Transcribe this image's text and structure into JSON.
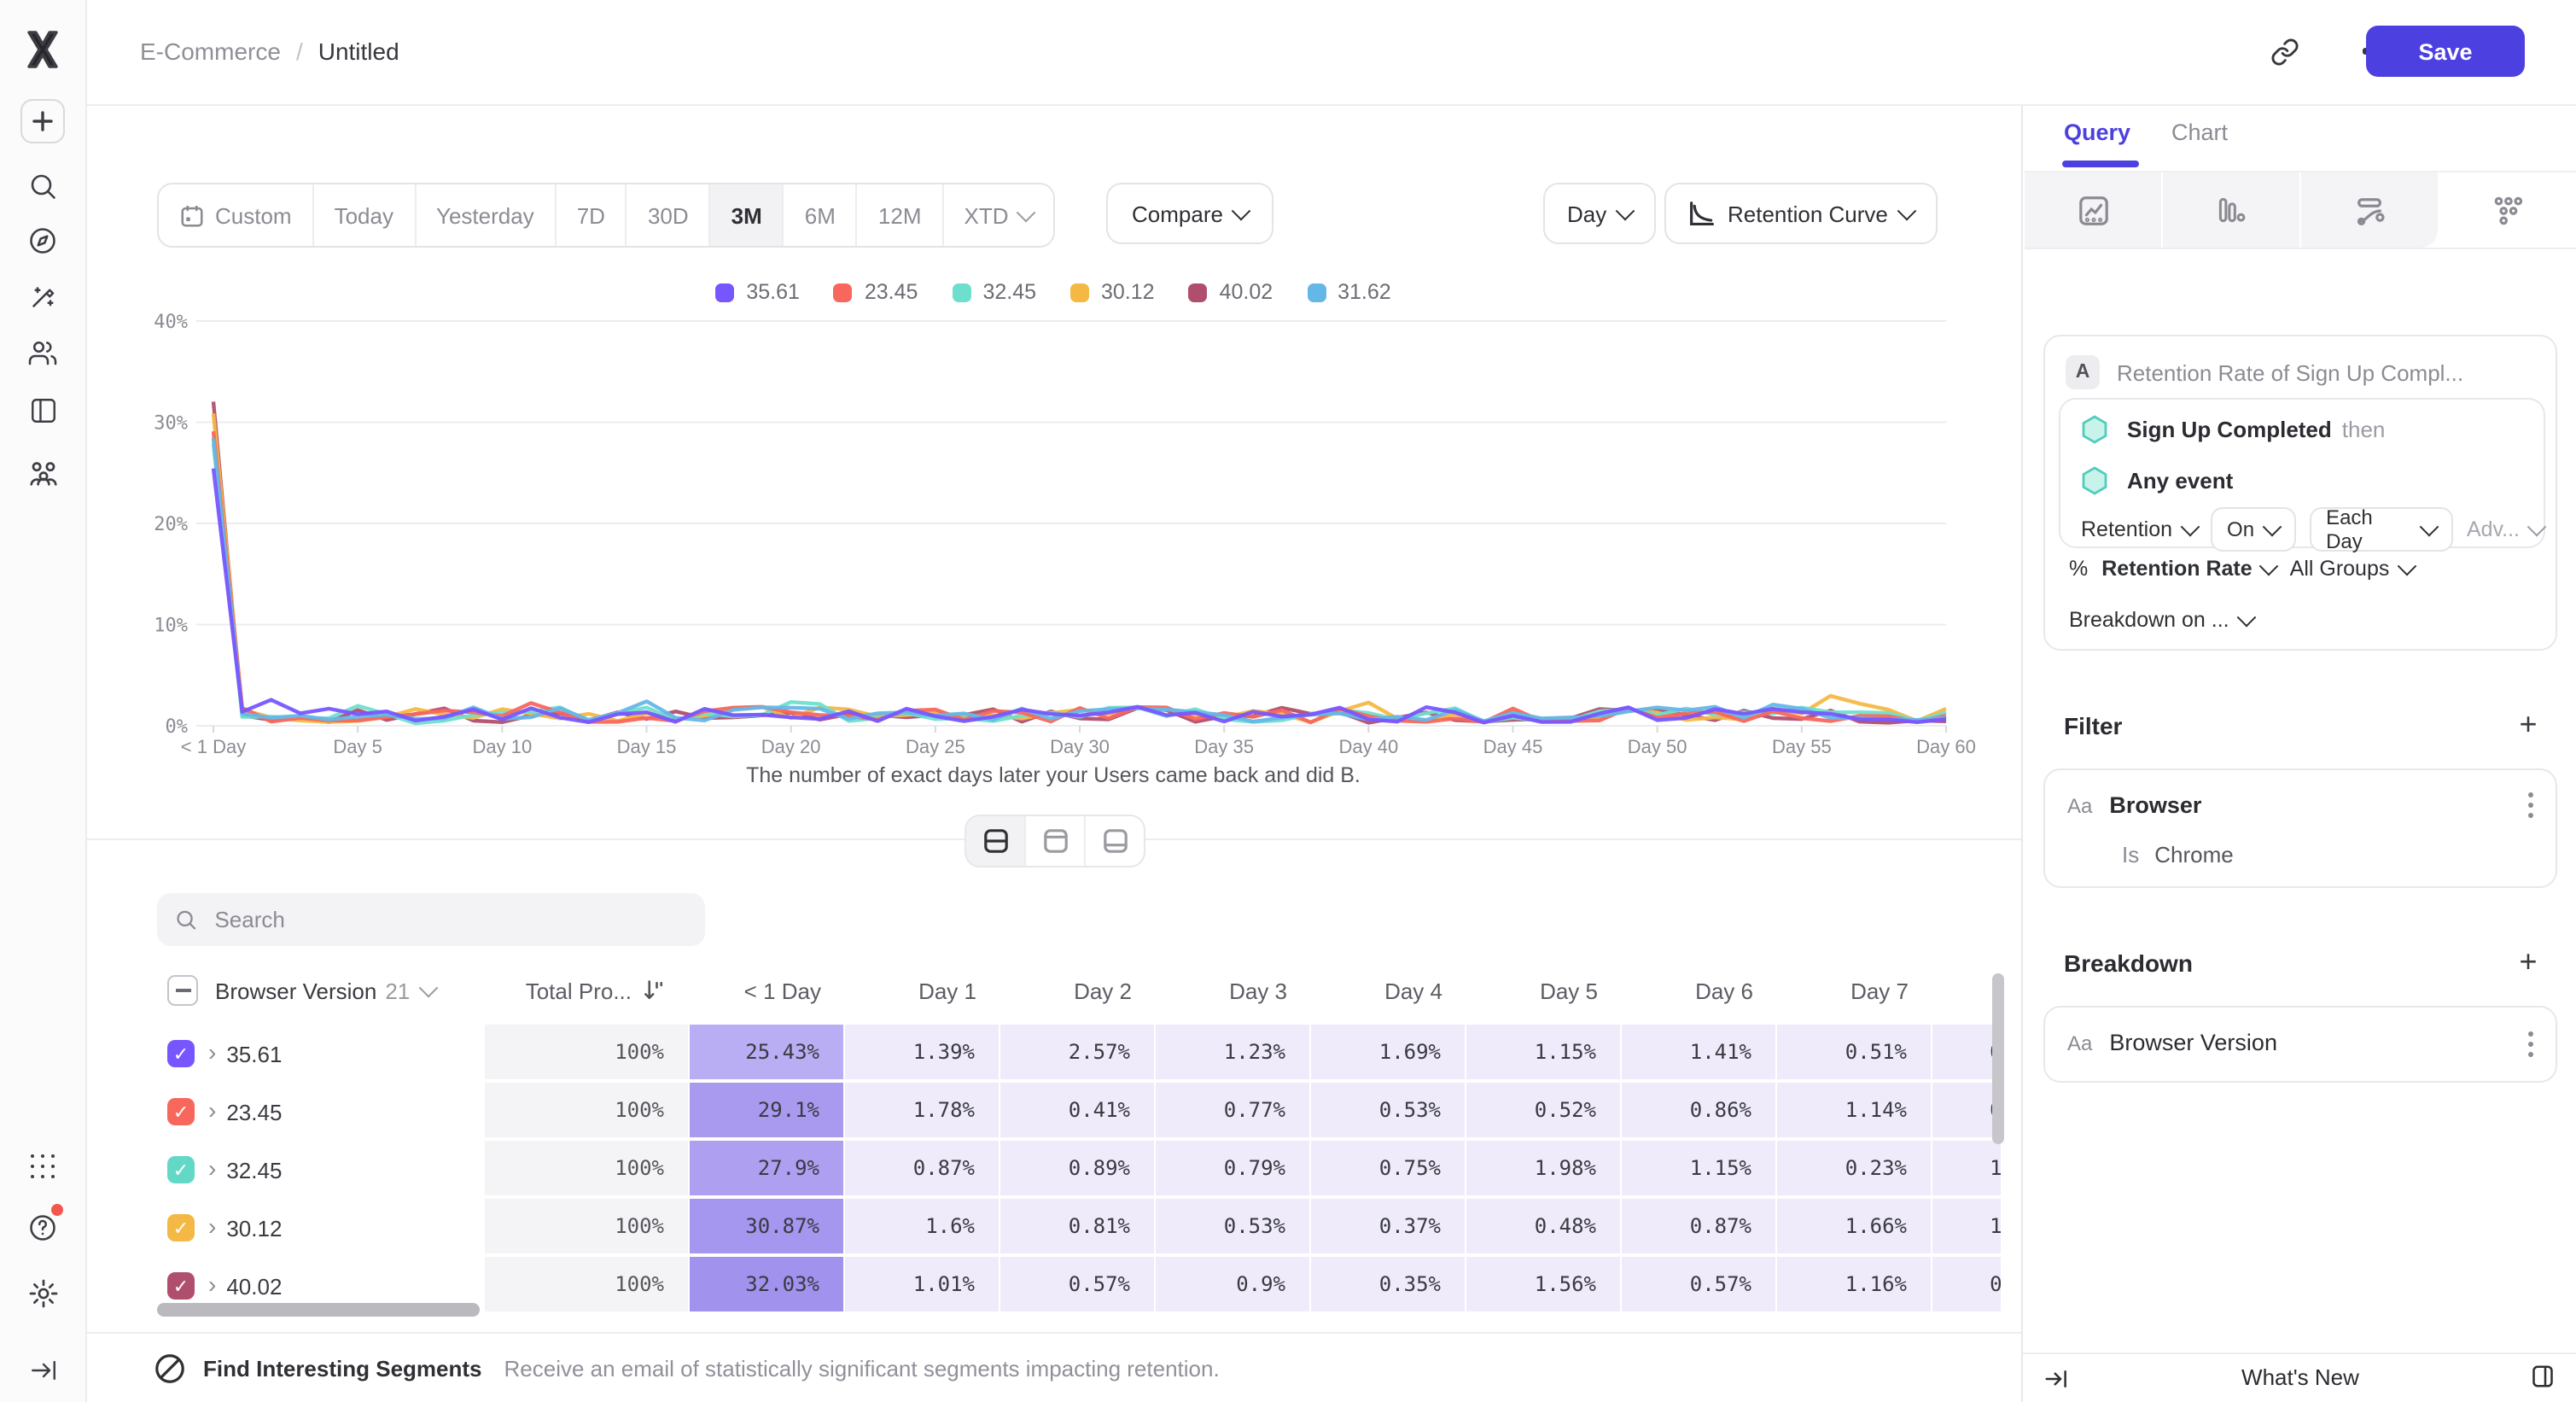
{
  "topbar": {
    "breadcrumb": {
      "project": "E-Commerce",
      "separator": "/",
      "title": "Untitled"
    },
    "save_label": "Save"
  },
  "sidebar": {
    "top_icons": [
      "mixpanel-logo",
      "create-plus",
      "search",
      "explore",
      "magic-wand",
      "users",
      "boards",
      "cohorts"
    ],
    "bottom_icons": [
      "apps-grid",
      "help",
      "settings",
      "collapse-sidebar"
    ],
    "help_badge_color": "#f2564d"
  },
  "toolbar": {
    "date_ranges": [
      "Custom",
      "Today",
      "Yesterday",
      "7D",
      "30D",
      "3M",
      "6M",
      "12M",
      "XTD"
    ],
    "selected_range": "3M",
    "compare_label": "Compare",
    "granularity_label": "Day",
    "chart_type_label": "Retention Curve"
  },
  "legend": {
    "items": [
      {
        "label": "35.61",
        "color": "#7856ff"
      },
      {
        "label": "23.45",
        "color": "#f8675c"
      },
      {
        "label": "32.45",
        "color": "#6fdfcd"
      },
      {
        "label": "30.12",
        "color": "#f4b844"
      },
      {
        "label": "40.02",
        "color": "#b04f6d"
      },
      {
        "label": "31.62",
        "color": "#65b7e8"
      }
    ]
  },
  "chart_data": {
    "type": "line",
    "title": "",
    "x_ticks": [
      "< 1 Day",
      "Day 5",
      "Day 10",
      "Day 15",
      "Day 20",
      "Day 25",
      "Day 30",
      "Day 35",
      "Day 40",
      "Day 45",
      "Day 50",
      "Day 55",
      "Day 60"
    ],
    "x_points": 61,
    "y_ticks": [
      "0%",
      "10%",
      "20%",
      "30%",
      "40%"
    ],
    "y_max_percent": 40,
    "grid": true,
    "legend_position": "top-center",
    "caption": "The number of exact days later your Users came back and did B.",
    "series": [
      {
        "name": "35.61",
        "color": "#7856ff",
        "values_day0_to_7": [
          25.43,
          1.39,
          2.57,
          1.23,
          1.69,
          1.15,
          1.41,
          0.51
        ]
      },
      {
        "name": "23.45",
        "color": "#f8675c",
        "values_day0_to_7": [
          29.1,
          1.78,
          0.41,
          0.77,
          0.53,
          0.52,
          0.86,
          1.14
        ]
      },
      {
        "name": "32.45",
        "color": "#6fdfcd",
        "values_day0_to_7": [
          27.9,
          0.87,
          0.89,
          0.79,
          0.75,
          1.98,
          1.15,
          0.23
        ]
      },
      {
        "name": "30.12",
        "color": "#f4b844",
        "values_day0_to_7": [
          30.87,
          1.6,
          0.81,
          0.53,
          0.37,
          0.48,
          0.87,
          1.66
        ]
      },
      {
        "name": "40.02",
        "color": "#b04f6d",
        "values_day0_to_7": [
          32.03,
          1.01,
          0.57,
          0.9,
          0.35,
          1.56,
          0.57,
          1.16
        ]
      },
      {
        "name": "31.62",
        "color": "#65b7e8",
        "values_day0_to_7": [
          28.4,
          1.2,
          0.8,
          1.0,
          0.6,
          0.9,
          1.1,
          0.7
        ],
        "estimated": true
      }
    ],
    "days_8_to_60_note": "Unlabeled in chart; lines fluctuate between ~0.2% and ~2.5% with occasional peaks (~3% amber spike near Day 57)"
  },
  "view_toggle": {
    "options": [
      "split-view",
      "chart-only",
      "table-only"
    ],
    "selected": "split-view"
  },
  "table": {
    "search_placeholder": "Search",
    "breakdown_column": {
      "label": "Browser Version",
      "count": "21"
    },
    "total_column": {
      "label": "Total Pro..."
    },
    "day_columns": [
      "< 1 Day",
      "Day 1",
      "Day 2",
      "Day 3",
      "Day 4",
      "Day 5",
      "Day 6",
      "Day 7"
    ],
    "rows": [
      {
        "label": "35.61",
        "color": "#7856ff",
        "total": "100%",
        "first_cell_bg": "#b9adf3",
        "values": [
          "25.43%",
          "1.39%",
          "2.57%",
          "1.23%",
          "1.69%",
          "1.15%",
          "1.41%",
          "0.51%"
        ],
        "clipped": "0."
      },
      {
        "label": "23.45",
        "color": "#f8675c",
        "total": "100%",
        "first_cell_bg": "#a99af0",
        "values": [
          "29.1%",
          "1.78%",
          "0.41%",
          "0.77%",
          "0.53%",
          "0.52%",
          "0.86%",
          "1.14%"
        ],
        "clipped": "0."
      },
      {
        "label": "32.45",
        "color": "#63d8c7",
        "total": "100%",
        "first_cell_bg": "#ae9ff1",
        "values": [
          "27.9%",
          "0.87%",
          "0.89%",
          "0.79%",
          "0.75%",
          "1.98%",
          "1.15%",
          "0.23%"
        ],
        "clipped": "1."
      },
      {
        "label": "30.12",
        "color": "#f4b844",
        "total": "100%",
        "first_cell_bg": "#a596ef",
        "values": [
          "30.87%",
          "1.6%",
          "0.81%",
          "0.53%",
          "0.37%",
          "0.48%",
          "0.87%",
          "1.66%"
        ],
        "clipped": "1."
      },
      {
        "label": "40.02",
        "color": "#b04f6d",
        "total": "100%",
        "first_cell_bg": "#a192ee",
        "values": [
          "32.03%",
          "1.01%",
          "0.57%",
          "0.9%",
          "0.35%",
          "1.56%",
          "0.57%",
          "1.16%"
        ],
        "clipped": "0."
      }
    ]
  },
  "footer": {
    "title": "Find Interesting Segments",
    "description": "Receive an email of statistically significant segments impacting retention."
  },
  "panel": {
    "tabs": [
      {
        "label": "Query",
        "active": true
      },
      {
        "label": "Chart",
        "active": false
      }
    ],
    "chart_type_buttons": [
      "insights-line",
      "bar",
      "flows",
      "retention"
    ],
    "selected_chart_type": "retention",
    "query": {
      "badge": "A",
      "title": "Retention Rate of Sign Up Compl...",
      "first_event": "Sign Up Completed",
      "then_label": "then",
      "second_event": "Any event",
      "controls": {
        "retention": "Retention",
        "on": "On",
        "each": "Each Day",
        "advanced": "Adv..."
      },
      "measure": {
        "prefix": "%",
        "label": "Retention Rate",
        "groups": "All Groups"
      },
      "breakdown_on": "Breakdown on ..."
    },
    "filter": {
      "heading": "Filter",
      "property_type": "Aa",
      "property": "Browser",
      "operator": "Is",
      "value": "Chrome"
    },
    "breakdown": {
      "heading": "Breakdown",
      "property_type": "Aa",
      "property": "Browser Version"
    },
    "bottom": {
      "whats_new": "What's New"
    }
  },
  "colors": {
    "accent": "#4c40e0",
    "highlight_cell": "#efebfb",
    "total_cell": "#f4f4f6",
    "teal_icon": "#45d0bb"
  }
}
